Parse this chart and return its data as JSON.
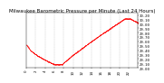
{
  "title": "Milwaukee Barometric Pressure per Minute (Last 24 Hours)",
  "line_color": "#ff0000",
  "bg_color": "#ffffff",
  "grid_color": "#b0b0b0",
  "ylabel_color": "#000000",
  "ylim": [
    29.0,
    30.25
  ],
  "yticks": [
    29.0,
    29.1,
    29.2,
    29.3,
    29.4,
    29.5,
    29.6,
    29.7,
    29.8,
    29.9,
    30.0,
    30.1,
    30.2
  ],
  "num_points": 1440,
  "title_fontsize": 4.0,
  "tick_fontsize": 2.8,
  "n_vgrid": 12
}
